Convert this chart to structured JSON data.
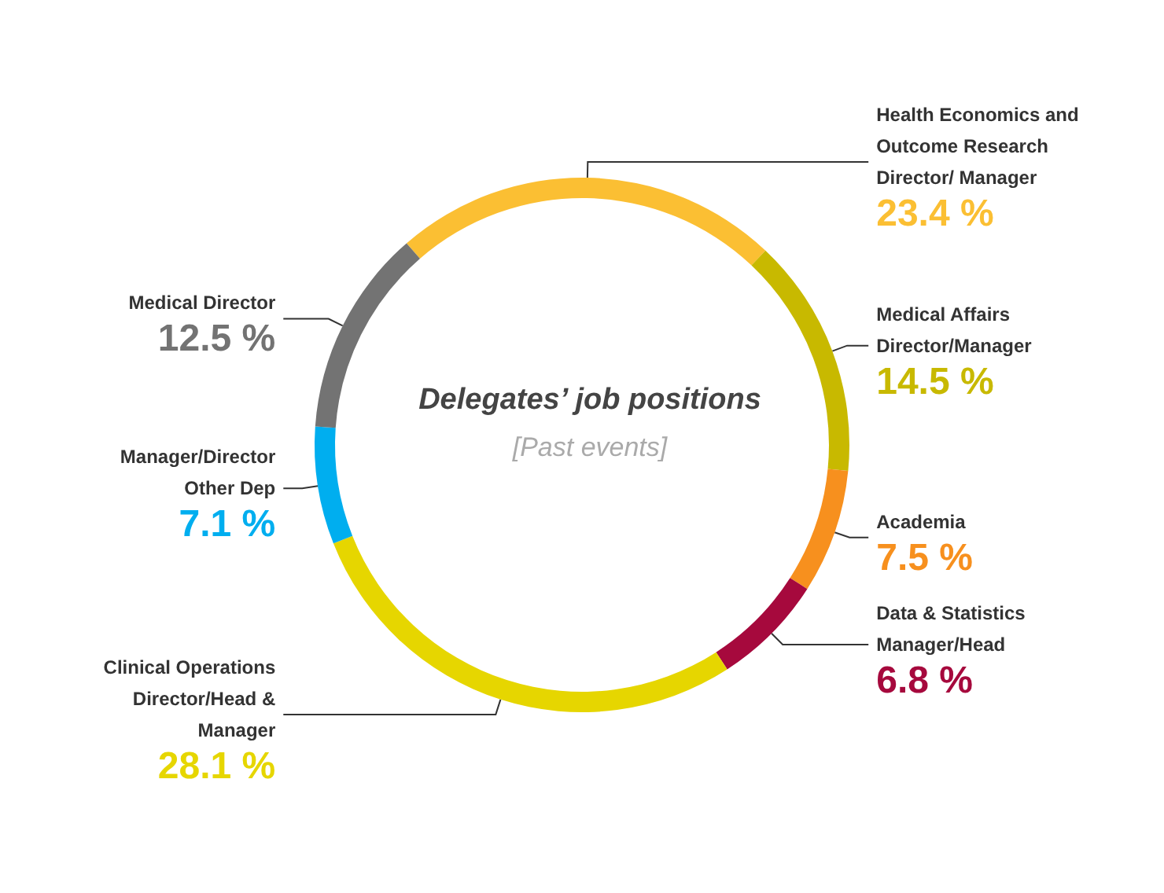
{
  "chart_data": {
    "type": "donut",
    "title": "Delegates’ job positions",
    "subtitle": "[Past events]",
    "categories": [
      "Health Economics and Outcome Research Director/ Manager",
      "Medical Affairs Director/Manager",
      "Academia",
      "Data & Statistics Manager/Head",
      "Clinical Operations Director/Head & Manager",
      "Manager/Director Other Dep",
      "Medical Director"
    ],
    "values": [
      23.4,
      14.5,
      7.5,
      6.8,
      28.1,
      7.1,
      12.5
    ],
    "value_labels": [
      "23.4 %",
      "14.5 %",
      "7.5 %",
      "6.8 %",
      "28.1 %",
      "7.1 %",
      "12.5 %"
    ],
    "colors": [
      "#fbbf33",
      "#c8b900",
      "#f7901e",
      "#a6093d",
      "#e6d600",
      "#00aeef",
      "#737373"
    ],
    "legend": false
  }
}
